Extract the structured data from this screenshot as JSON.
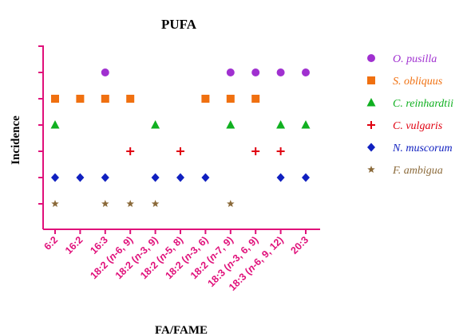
{
  "chart_data": {
    "type": "scatter",
    "title": "PUFA",
    "xlabel": "FA/FAME",
    "ylabel": "Incidence",
    "categories": [
      "6:2",
      "16:2",
      "16:3",
      "18:2 (n-6, 9)",
      "18:2 (n-3, 9)",
      "18:2 (n-5, 8)",
      "18:2 (n-3, 6)",
      "18:2 (n-7, 9)",
      "18:3 (n-3, 6, 9)",
      "18:3 (n-6, 9, 12)",
      "20:3"
    ],
    "series": [
      {
        "name": "O. pusilla",
        "color": "#a030d0",
        "marker": "circle",
        "level": 6,
        "present": [
          "16:3",
          "18:2 (n-7, 9)",
          "18:3 (n-3, 6, 9)",
          "18:3 (n-6, 9, 12)",
          "20:3"
        ]
      },
      {
        "name": "S. obliquus",
        "color": "#f07010",
        "marker": "square",
        "level": 5,
        "present": [
          "6:2",
          "16:2",
          "16:3",
          "18:2 (n-6, 9)",
          "18:2 (n-3, 6)",
          "18:2 (n-7, 9)",
          "18:3 (n-3, 6, 9)"
        ]
      },
      {
        "name": "C. reinhardtii",
        "color": "#10b020",
        "marker": "triangle",
        "level": 4,
        "present": [
          "6:2",
          "18:2 (n-3, 9)",
          "18:2 (n-7, 9)",
          "18:3 (n-6, 9, 12)",
          "20:3"
        ]
      },
      {
        "name": "C. vulgaris",
        "color": "#e00010",
        "marker": "cross",
        "level": 3,
        "present": [
          "18:2 (n-6, 9)",
          "18:2 (n-5, 8)",
          "18:3 (n-3, 6, 9)",
          "18:3 (n-6, 9, 12)"
        ]
      },
      {
        "name": "N. muscorum",
        "color": "#1020c0",
        "marker": "diamond",
        "level": 2,
        "present": [
          "6:2",
          "16:2",
          "16:3",
          "18:2 (n-3, 9)",
          "18:2 (n-5, 8)",
          "18:2 (n-3, 6)",
          "18:3 (n-6, 9, 12)",
          "20:3"
        ]
      },
      {
        "name": "F. ambigua",
        "color": "#8b6a3a",
        "marker": "star",
        "level": 1,
        "present": [
          "6:2",
          "16:3",
          "18:2 (n-6, 9)",
          "18:2 (n-3, 9)",
          "18:2 (n-7, 9)"
        ]
      }
    ],
    "ylim": [
      0,
      7
    ],
    "axis_color": "#e0107a",
    "tick_label_color": "#e0107a",
    "grid": false,
    "legend_position": "right"
  }
}
